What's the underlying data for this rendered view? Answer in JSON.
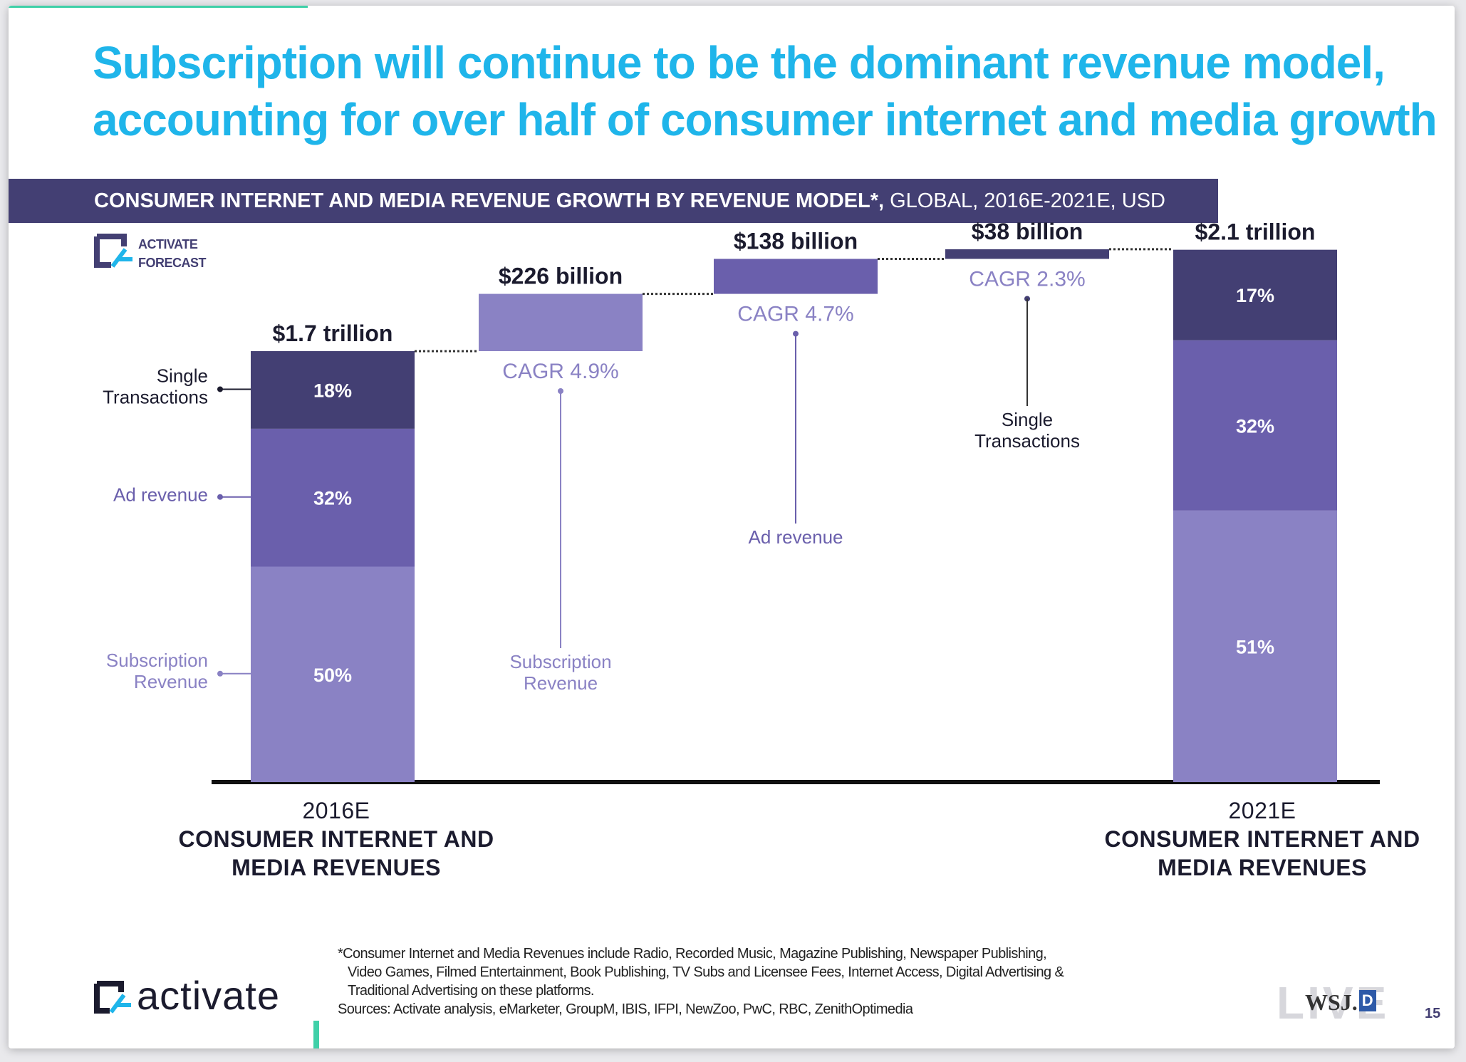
{
  "title": {
    "line1": "Subscription will continue to be the dominant revenue model,",
    "line2": "accounting for over half of consumer internet and media growth"
  },
  "banner": {
    "bold": "CONSUMER INTERNET AND MEDIA REVENUE GROWTH BY REVENUE MODEL*,",
    "rest": " GLOBAL, 2016E-2021E, USD"
  },
  "forecast_logo": {
    "line1": "ACTIVATE",
    "line2": "FORECAST"
  },
  "colors": {
    "title": "#1fb5ea",
    "banner": "#433f73",
    "single_transactions": "#433f73",
    "ad_revenue": "#6a5fac",
    "subscription": "#8a82c4",
    "cagr_text": "#8a82c4",
    "accent_green": "#3fd0a8"
  },
  "chart_data": {
    "type": "waterfall-stacked-bar",
    "unit": "USD trillion",
    "start": {
      "label": "$1.7 trillion",
      "total": 1.7,
      "year": "2016E",
      "caption_line1": "CONSUMER INTERNET AND",
      "caption_line2": "MEDIA REVENUES",
      "segments": [
        {
          "name": "Subscription Revenue",
          "name_line1": "Subscription",
          "name_line2": "Revenue",
          "share": 0.5,
          "label": "50%"
        },
        {
          "name": "Ad revenue",
          "name_line1": "Ad revenue",
          "name_line2": "",
          "share": 0.32,
          "label": "32%"
        },
        {
          "name": "Single Transactions",
          "name_line1": "Single",
          "name_line2": "Transactions",
          "share": 0.18,
          "label": "18%"
        }
      ]
    },
    "increments": [
      {
        "label": "$226 billion",
        "value": 0.226,
        "cagr": "CAGR 4.9%",
        "category_line1": "Subscription",
        "category_line2": "Revenue"
      },
      {
        "label": "$138 billion",
        "value": 0.138,
        "cagr": "CAGR 4.7%",
        "category_line1": "Ad revenue",
        "category_line2": ""
      },
      {
        "label": "$38 billion",
        "value": 0.038,
        "cagr": "CAGR 2.3%",
        "category_line1": "Single",
        "category_line2": "Transactions"
      }
    ],
    "end": {
      "label": "$2.1 trillion",
      "total": 2.1,
      "year": "2021E",
      "caption_line1": "CONSUMER INTERNET AND",
      "caption_line2": "MEDIA REVENUES",
      "segments": [
        {
          "name": "Subscription Revenue",
          "share": 0.51,
          "label": "51%"
        },
        {
          "name": "Ad revenue",
          "share": 0.32,
          "label": "32%"
        },
        {
          "name": "Single Transactions",
          "share": 0.17,
          "label": "17%"
        }
      ]
    }
  },
  "footnote": {
    "line1": "*Consumer Internet and Media Revenues include Radio, Recorded Music, Magazine Publishing, Newspaper Publishing,",
    "line2": "Video Games, Filmed Entertainment, Book Publishing, TV Subs and Licensee Fees, Internet Access, Digital Advertising &",
    "line3": "Traditional Advertising on these platforms.",
    "sources": "Sources: Activate analysis, eMarketer, GroupM, IBIS, IFPI, NewZoo, PwC, RBC, ZenithOptimedia"
  },
  "brand": {
    "name": "activate"
  },
  "wsj": {
    "big": "LIVE",
    "small": "WSJ.",
    "box": "D"
  },
  "page_number": "15"
}
